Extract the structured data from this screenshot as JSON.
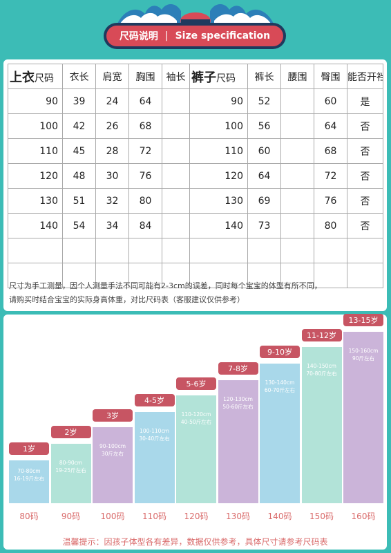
{
  "banner": {
    "cn": "尺码说明",
    "sep": "|",
    "en": "Size specification"
  },
  "table": {
    "top_prefix": "上衣",
    "top_suffix": "尺码",
    "col_length": "衣长",
    "col_shoulder": "肩宽",
    "col_chest": "胸围",
    "col_sleeve": "袖长",
    "pants_prefix": "裤子",
    "pants_suffix": "尺码",
    "col_pants_length": "裤长",
    "col_waist": "腰围",
    "col_hip": "臀围",
    "col_crotch": "能否开裆",
    "rows": [
      {
        "size": "90",
        "length": "39",
        "shoulder": "24",
        "chest": "64",
        "sleeve": "",
        "psize": "90",
        "plength": "52",
        "waist": "",
        "hip": "60",
        "crotch": "是"
      },
      {
        "size": "100",
        "length": "42",
        "shoulder": "26",
        "chest": "68",
        "sleeve": "",
        "psize": "100",
        "plength": "56",
        "waist": "",
        "hip": "64",
        "crotch": "否"
      },
      {
        "size": "110",
        "length": "45",
        "shoulder": "28",
        "chest": "72",
        "sleeve": "",
        "psize": "110",
        "plength": "60",
        "waist": "",
        "hip": "68",
        "crotch": "否"
      },
      {
        "size": "120",
        "length": "48",
        "shoulder": "30",
        "chest": "76",
        "sleeve": "",
        "psize": "120",
        "plength": "64",
        "waist": "",
        "hip": "72",
        "crotch": "否"
      },
      {
        "size": "130",
        "length": "51",
        "shoulder": "32",
        "chest": "80",
        "sleeve": "",
        "psize": "130",
        "plength": "69",
        "waist": "",
        "hip": "76",
        "crotch": "否"
      },
      {
        "size": "140",
        "length": "54",
        "shoulder": "34",
        "chest": "84",
        "sleeve": "",
        "psize": "140",
        "plength": "73",
        "waist": "",
        "hip": "80",
        "crotch": "否"
      }
    ]
  },
  "note": {
    "line1": "尺寸为手工测量，因个人测量手法不同可能有2-3cm的误差，同时每个宝宝的体型有所不同，",
    "line2": "请购买时结合宝宝的实际身高体重，对比尺码表（客服建议仅供参考）"
  },
  "size_chart": {
    "colors": {
      "blue": "#a9d8ea",
      "green": "#b2e3d8",
      "purple": "#cbb4d9",
      "label_red": "#c75563",
      "text_red": "#d96a6a"
    },
    "items": [
      {
        "age": "1岁",
        "height": "70-80cm",
        "weight": "16-19斤左右",
        "code": "80码",
        "color": "#a9d8ea"
      },
      {
        "age": "2岁",
        "height": "80-90cm",
        "weight": "19-25斤左右",
        "code": "90码",
        "color": "#b2e3d8"
      },
      {
        "age": "3岁",
        "height": "90-100cm",
        "weight": "30斤左右",
        "code": "100码",
        "color": "#cbb4d9"
      },
      {
        "age": "4-5岁",
        "height": "100-110cm",
        "weight": "30-40斤左右",
        "code": "110码",
        "color": "#a9d8ea"
      },
      {
        "age": "5-6岁",
        "height": "110-120cm",
        "weight": "40-50斤左右",
        "code": "120码",
        "color": "#b2e3d8"
      },
      {
        "age": "7-8岁",
        "height": "120-130cm",
        "weight": "50-60斤左右",
        "code": "130码",
        "color": "#cbb4d9"
      },
      {
        "age": "9-10岁",
        "height": "130-140cm",
        "weight": "60-70斤左右",
        "code": "140码",
        "color": "#a9d8ea"
      },
      {
        "age": "11-12岁",
        "height": "140-150cm",
        "weight": "70-80斤左右",
        "code": "150码",
        "color": "#b2e3d8"
      },
      {
        "age": "13-15岁",
        "height": "150-160cm",
        "weight": "90斤左右",
        "code": "160码",
        "color": "#cbb4d9"
      }
    ]
  },
  "tip": "温馨提示：因孩子体型各有差异，数据仅供参考，具体尺寸请参考尺码表"
}
